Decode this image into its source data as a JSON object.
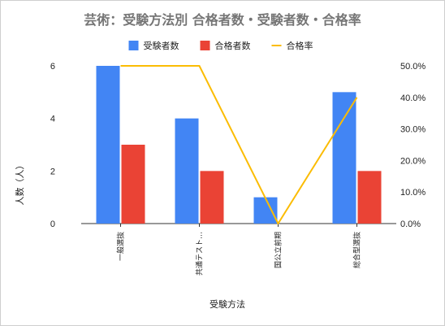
{
  "chart_data": {
    "type": "bar",
    "title": "芸術：受験方法別 合格者数・受験者数・合格率",
    "xlabel": "受験方法",
    "ylabel": "人数（人）",
    "categories": [
      "一般選抜",
      "共通テスト…",
      "国公立前期",
      "総合型選抜"
    ],
    "ylim": [
      0,
      6
    ],
    "y_ticks": [
      0,
      2,
      4,
      6
    ],
    "y2lim": [
      0,
      50
    ],
    "y2_ticks": [
      "0.0%",
      "10.0%",
      "20.0%",
      "30.0%",
      "40.0%",
      "50.0%"
    ],
    "series": [
      {
        "name": "受験者数",
        "type": "bar",
        "color": "#4285f4",
        "values": [
          6,
          4,
          1,
          5
        ]
      },
      {
        "name": "合格者数",
        "type": "bar",
        "color": "#ea4335",
        "values": [
          3,
          2,
          0,
          2
        ]
      },
      {
        "name": "合格率",
        "type": "line",
        "axis": "right",
        "color": "#fbbc04",
        "values": [
          50,
          50,
          0,
          40
        ]
      }
    ],
    "legend_position": "top",
    "grid": false
  }
}
